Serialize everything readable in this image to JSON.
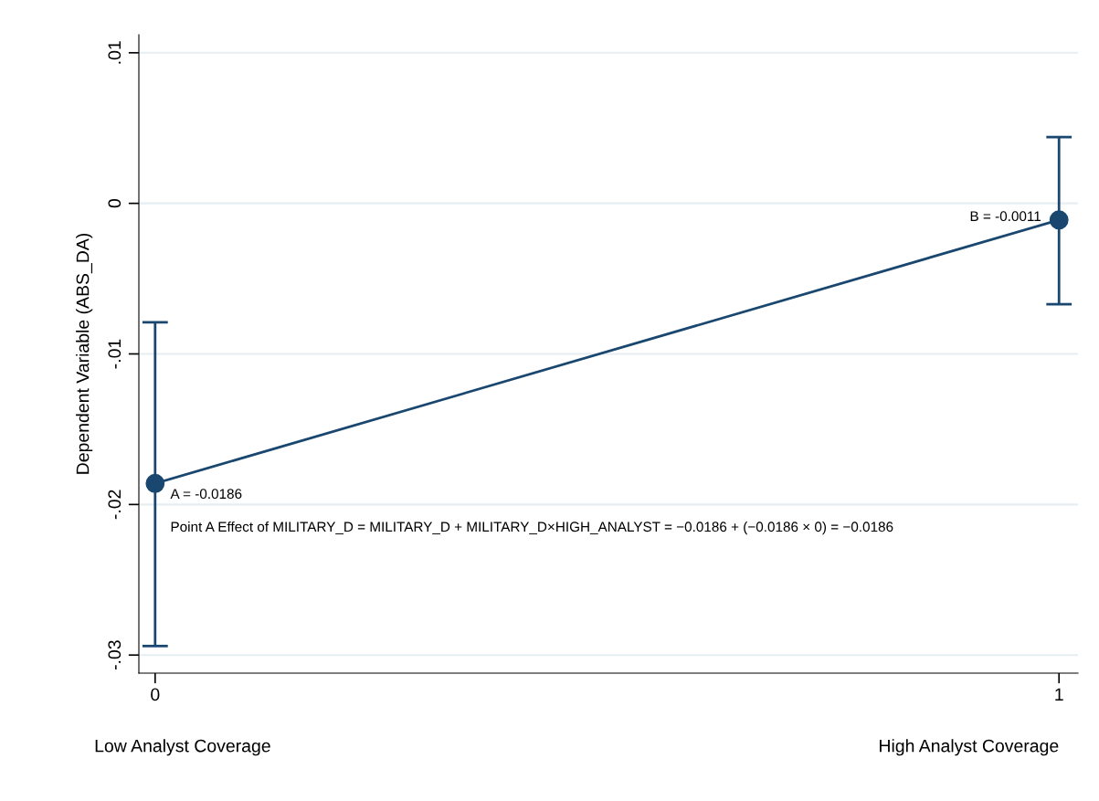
{
  "chart_data": {
    "type": "line",
    "ylabel": "Dependent Variable (ABS_DA)",
    "x": [
      0,
      1
    ],
    "series": [
      {
        "color": "#1a476f",
        "values": [
          -0.0186,
          -0.0011
        ],
        "errors": [
          [
            -0.0294,
            -0.0079
          ],
          [
            -0.0067,
            0.0044
          ]
        ],
        "value_labels": [
          "A = -0.0186",
          "B = -0.0011"
        ]
      }
    ],
    "marker": "circle",
    "xlim": [
      -0.018,
      1.021
    ],
    "xticks": [
      0,
      1
    ],
    "ylim": [
      -0.0312,
      0.0112
    ],
    "yticks": [
      {
        "value": 0.01,
        "label": ".01"
      },
      0,
      {
        "value": -0.01,
        "label": "-.01"
      },
      {
        "value": -0.02,
        "label": "-.02"
      },
      {
        "value": -0.03,
        "label": "-.03"
      }
    ],
    "grid": "y",
    "annotations": [
      "Point A Effect of MILITARY_D = MILITARY_D + MILITARY_D×HIGH_ANALYST = −0.0186 + (−0.0186 × 0) = −0.0186",
      "Low Analyst Coverage",
      "High Analyst Coverage"
    ]
  }
}
